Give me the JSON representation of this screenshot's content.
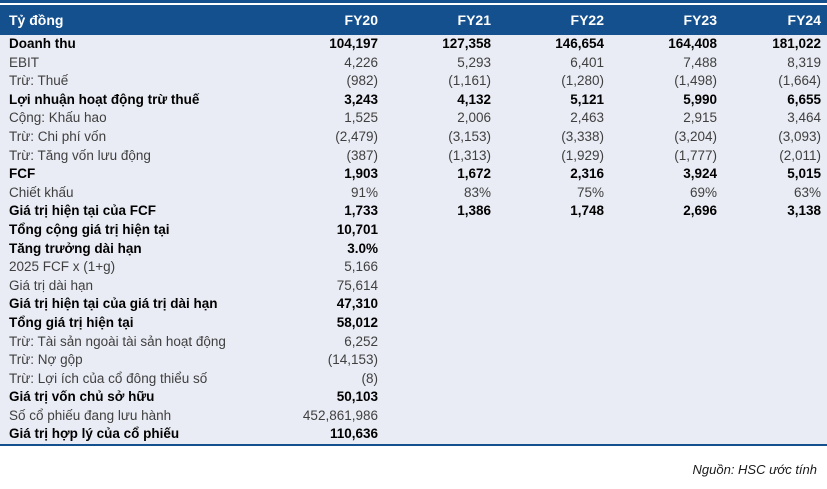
{
  "colors": {
    "header_bg": "#14508e",
    "body_bg": "#e9ecf4",
    "rule_blue": "#14508e",
    "bold_text": "#000000",
    "regular_text": "#3f3f3f"
  },
  "table": {
    "unit_label": "Tỷ đồng",
    "columns": [
      "FY20",
      "FY21",
      "FY22",
      "FY23",
      "FY24"
    ],
    "rows": [
      {
        "label": "Doanh thu",
        "bold": true,
        "values": [
          "104,197",
          "127,358",
          "146,654",
          "164,408",
          "181,022"
        ]
      },
      {
        "label": "EBIT",
        "bold": false,
        "values": [
          "4,226",
          "5,293",
          "6,401",
          "7,488",
          "8,319"
        ]
      },
      {
        "label": "Trừ: Thuế",
        "bold": false,
        "values": [
          "(982)",
          "(1,161)",
          "(1,280)",
          "(1,498)",
          "(1,664)"
        ]
      },
      {
        "label": "Lợi nhuận hoạt động trừ thuế",
        "bold": true,
        "values": [
          "3,243",
          "4,132",
          "5,121",
          "5,990",
          "6,655"
        ]
      },
      {
        "label": "Cộng: Khấu hao",
        "bold": false,
        "values": [
          "1,525",
          "2,006",
          "2,463",
          "2,915",
          "3,464"
        ]
      },
      {
        "label": "Trừ: Chi phí vốn",
        "bold": false,
        "values": [
          "(2,479)",
          "(3,153)",
          "(3,338)",
          "(3,204)",
          "(3,093)"
        ]
      },
      {
        "label": "Trừ: Tăng vốn lưu động",
        "bold": false,
        "values": [
          "(387)",
          "(1,313)",
          "(1,929)",
          "(1,777)",
          "(2,011)"
        ]
      },
      {
        "label": "FCF",
        "bold": true,
        "values": [
          "1,903",
          "1,672",
          "2,316",
          "3,924",
          "5,015"
        ]
      },
      {
        "label": "Chiết khấu",
        "bold": false,
        "values": [
          "91%",
          "83%",
          "75%",
          "69%",
          "63%"
        ]
      },
      {
        "label": "Giá trị hiện tại của FCF",
        "bold": true,
        "values": [
          "1,733",
          "1,386",
          "1,748",
          "2,696",
          "3,138"
        ]
      },
      {
        "label": "Tổng cộng giá trị hiện tại",
        "bold": true,
        "values": [
          "10,701",
          "",
          "",
          "",
          ""
        ]
      },
      {
        "label": "Tăng trưởng dài hạn",
        "bold": true,
        "values": [
          "3.0%",
          "",
          "",
          "",
          ""
        ]
      },
      {
        "label": "2025 FCF x (1+g)",
        "bold": false,
        "values": [
          "5,166",
          "",
          "",
          "",
          ""
        ]
      },
      {
        "label": "Giá trị dài hạn",
        "bold": false,
        "values": [
          "75,614",
          "",
          "",
          "",
          ""
        ]
      },
      {
        "label": "Giá trị hiện tại của giá trị dài hạn",
        "bold": true,
        "values": [
          "47,310",
          "",
          "",
          "",
          ""
        ]
      },
      {
        "label": "Tổng giá trị hiện tại",
        "bold": true,
        "values": [
          "58,012",
          "",
          "",
          "",
          ""
        ]
      },
      {
        "label": "Trừ: Tài sản ngoài tài sản hoạt động",
        "bold": false,
        "values": [
          "6,252",
          "",
          "",
          "",
          ""
        ]
      },
      {
        "label": "Trừ: Nợ gộp",
        "bold": false,
        "values": [
          "(14,153)",
          "",
          "",
          "",
          ""
        ]
      },
      {
        "label": "Trừ: Lợi ích của cổ đông thiểu số",
        "bold": false,
        "values": [
          "(8)",
          "",
          "",
          "",
          ""
        ]
      },
      {
        "label": "Giá trị vốn chủ sở hữu",
        "bold": true,
        "values": [
          "50,103",
          "",
          "",
          "",
          ""
        ]
      },
      {
        "label": "Số cổ phiếu đang lưu hành",
        "bold": false,
        "values": [
          "452,861,986",
          "",
          "",
          "",
          ""
        ]
      },
      {
        "label": "Giá trị hợp lý của cổ phiếu",
        "bold": true,
        "values": [
          "110,636",
          "",
          "",
          "",
          ""
        ]
      }
    ]
  },
  "footer": {
    "source": "Nguồn: HSC ước tính"
  },
  "chart_data": {
    "type": "table",
    "title": "DCF valuation (Tỷ đồng)",
    "columns": [
      "Tỷ đồng",
      "FY20",
      "FY21",
      "FY22",
      "FY23",
      "FY24"
    ],
    "rows": [
      [
        "Doanh thu",
        "104,197",
        "127,358",
        "146,654",
        "164,408",
        "181,022"
      ],
      [
        "EBIT",
        "4,226",
        "5,293",
        "6,401",
        "7,488",
        "8,319"
      ],
      [
        "Trừ: Thuế",
        "(982)",
        "(1,161)",
        "(1,280)",
        "(1,498)",
        "(1,664)"
      ],
      [
        "Lợi nhuận hoạt động trừ thuế",
        "3,243",
        "4,132",
        "5,121",
        "5,990",
        "6,655"
      ],
      [
        "Cộng: Khấu hao",
        "1,525",
        "2,006",
        "2,463",
        "2,915",
        "3,464"
      ],
      [
        "Trừ: Chi phí vốn",
        "(2,479)",
        "(3,153)",
        "(3,338)",
        "(3,204)",
        "(3,093)"
      ],
      [
        "Trừ: Tăng vốn lưu động",
        "(387)",
        "(1,313)",
        "(1,929)",
        "(1,777)",
        "(2,011)"
      ],
      [
        "FCF",
        "1,903",
        "1,672",
        "2,316",
        "3,924",
        "5,015"
      ],
      [
        "Chiết khấu",
        "91%",
        "83%",
        "75%",
        "69%",
        "63%"
      ],
      [
        "Giá trị hiện tại của FCF",
        "1,733",
        "1,386",
        "1,748",
        "2,696",
        "3,138"
      ],
      [
        "Tổng cộng giá trị hiện tại",
        "10,701",
        "",
        "",
        "",
        ""
      ],
      [
        "Tăng trưởng dài hạn",
        "3.0%",
        "",
        "",
        "",
        ""
      ],
      [
        "2025 FCF x (1+g)",
        "5,166",
        "",
        "",
        "",
        ""
      ],
      [
        "Giá trị dài hạn",
        "75,614",
        "",
        "",
        "",
        ""
      ],
      [
        "Giá trị hiện tại của giá trị dài hạn",
        "47,310",
        "",
        "",
        "",
        ""
      ],
      [
        "Tổng giá trị hiện tại",
        "58,012",
        "",
        "",
        "",
        ""
      ],
      [
        "Trừ: Tài sản ngoài tài sản hoạt động",
        "6,252",
        "",
        "",
        "",
        ""
      ],
      [
        "Trừ: Nợ gộp",
        "(14,153)",
        "",
        "",
        "",
        ""
      ],
      [
        "Trừ: Lợi ích của cổ đông thiểu số",
        "(8)",
        "",
        "",
        "",
        ""
      ],
      [
        "Giá trị vốn chủ sở hữu",
        "50,103",
        "",
        "",
        "",
        ""
      ],
      [
        "Số cổ phiếu đang lưu hành",
        "452,861,986",
        "",
        "",
        "",
        ""
      ],
      [
        "Giá trị hợp lý của cổ phiếu",
        "110,636",
        "",
        "",
        "",
        ""
      ]
    ]
  }
}
